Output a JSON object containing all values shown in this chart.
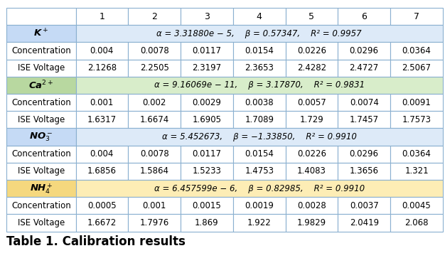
{
  "title": "Table 1. Calibration results",
  "col_headers": [
    "",
    "1",
    "2",
    "3",
    "4",
    "5",
    "6",
    "7"
  ],
  "sections": [
    {
      "ion": "K$^+$",
      "ion_bg": "#c5daf5",
      "formula_bg": "#ddeaf8",
      "formula": "α = 3.31880e − 5,    β = 0.57347,    R² = 0.9957",
      "conc": [
        "0.004",
        "0.0078",
        "0.0117",
        "0.0154",
        "0.0226",
        "0.0296",
        "0.0364"
      ],
      "volt": [
        "2.1268",
        "2.2505",
        "2.3197",
        "2.3653",
        "2.4282",
        "2.4727",
        "2.5067"
      ]
    },
    {
      "ion": "Ca$^{2+}$",
      "ion_bg": "#b8d8a0",
      "formula_bg": "#d8edca",
      "formula": "α = 9.16069e − 11,    β = 3.17870,    R² = 0.9831",
      "conc": [
        "0.001",
        "0.002",
        "0.0029",
        "0.0038",
        "0.0057",
        "0.0074",
        "0.0091"
      ],
      "volt": [
        "1.6317",
        "1.6674",
        "1.6905",
        "1.7089",
        "1.729",
        "1.7457",
        "1.7573"
      ]
    },
    {
      "ion": "NO$_3^-$",
      "ion_bg": "#c5daf5",
      "formula_bg": "#ddeaf8",
      "formula": "α = 5.452673,    β = −1.33850,    R² = 0.9910",
      "conc": [
        "0.004",
        "0.0078",
        "0.0117",
        "0.0154",
        "0.0226",
        "0.0296",
        "0.0364"
      ],
      "volt": [
        "1.6856",
        "1.5864",
        "1.5233",
        "1.4753",
        "1.4083",
        "1.3656",
        "1.321"
      ]
    },
    {
      "ion": "NH$_4^+$",
      "ion_bg": "#f5d87e",
      "formula_bg": "#fdedb5",
      "formula": "α = 6.457599e − 6,    β = 0.82985,    R² = 0.9910",
      "conc": [
        "0.0005",
        "0.001",
        "0.0015",
        "0.0019",
        "0.0028",
        "0.0037",
        "0.0045"
      ],
      "volt": [
        "1.6672",
        "1.7976",
        "1.869",
        "1.922",
        "1.9829",
        "2.0419",
        "2.068"
      ]
    }
  ],
  "header_bg": "#ffffff",
  "white_bg": "#ffffff",
  "border_color": "#8ab0d0",
  "title_fontsize": 12,
  "cell_fontsize": 8.5,
  "ion_fontsize": 9.5,
  "formula_fontsize": 8.5,
  "header_fontsize": 9.0,
  "fig_width": 6.26,
  "fig_height": 3.7,
  "dpi": 100
}
